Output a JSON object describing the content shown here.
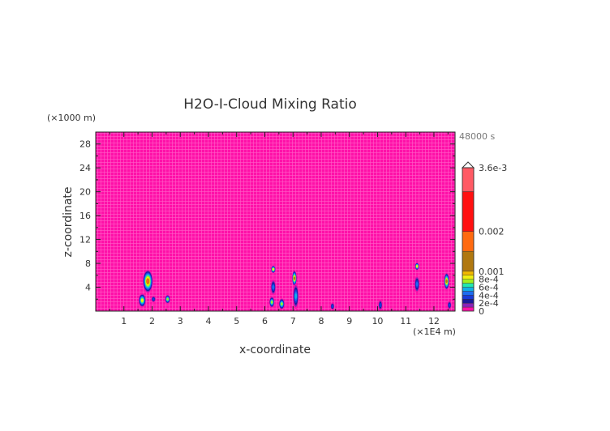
{
  "chart_data": {
    "type": "heatmap",
    "subtype": "filled-contour",
    "title": "H2O-I-Cloud Mixing Ratio",
    "xlabel": "x-coordinate",
    "ylabel": "z-coordinate",
    "x_unit": "(×1E4 m)",
    "y_unit": "(×1000 m)",
    "time_label": "48000 s",
    "xlim": [
      0,
      12.75
    ],
    "ylim": [
      0,
      30
    ],
    "x_ticks": [
      "1",
      "2",
      "3",
      "4",
      "5",
      "6",
      "7",
      "8",
      "9",
      "10",
      "11",
      "12"
    ],
    "y_ticks": [
      "4",
      "8",
      "12",
      "16",
      "20",
      "24",
      "28"
    ],
    "background_value": 0,
    "colorbar": {
      "levels": [
        0,
        0.0001,
        0.0002,
        0.0003,
        0.0004,
        0.0005,
        0.0006,
        0.0007,
        0.0008,
        0.0009,
        0.001,
        0.0015,
        0.002,
        0.003,
        0.0036
      ],
      "colors": [
        "#ff10a8",
        "#8a22b8",
        "#1a1a9a",
        "#1a3ad8",
        "#1e6cf0",
        "#10b0e8",
        "#20e8b0",
        "#a0f020",
        "#f0f010",
        "#f0b800",
        "#b07810",
        "#ff6a10",
        "#ff1010",
        "#ff5a64",
        "#ffb4b4"
      ],
      "tick_labels": [
        "0",
        "2e-4",
        "4e-4",
        "6e-4",
        "8e-4",
        "0.001",
        "0.002",
        "3.6e-3"
      ],
      "tick_values": [
        0,
        0.0002,
        0.0004,
        0.0006,
        0.0008,
        0.001,
        0.002,
        0.0036
      ],
      "extend": "max"
    },
    "features": [
      {
        "x": 1.85,
        "z": 5.0,
        "rx": 0.15,
        "rz": 1.8,
        "max": 0.0015
      },
      {
        "x": 1.65,
        "z": 1.8,
        "rx": 0.1,
        "rz": 1.0,
        "max": 0.0008
      },
      {
        "x": 2.05,
        "z": 2.0,
        "rx": 0.05,
        "rz": 0.4,
        "max": 0.0003
      },
      {
        "x": 2.55,
        "z": 2.0,
        "rx": 0.06,
        "rz": 0.6,
        "max": 0.0007
      },
      {
        "x": 6.3,
        "z": 7.0,
        "rx": 0.05,
        "rz": 0.5,
        "max": 0.0008
      },
      {
        "x": 6.3,
        "z": 4.0,
        "rx": 0.06,
        "rz": 1.2,
        "max": 0.0004
      },
      {
        "x": 6.25,
        "z": 1.5,
        "rx": 0.06,
        "rz": 0.8,
        "max": 0.0007
      },
      {
        "x": 6.6,
        "z": 1.2,
        "rx": 0.07,
        "rz": 0.8,
        "max": 0.0007
      },
      {
        "x": 7.05,
        "z": 5.5,
        "rx": 0.05,
        "rz": 1.2,
        "max": 0.0012
      },
      {
        "x": 7.1,
        "z": 2.5,
        "rx": 0.07,
        "rz": 2.0,
        "max": 0.0005
      },
      {
        "x": 8.4,
        "z": 0.8,
        "rx": 0.04,
        "rz": 0.5,
        "max": 0.0003
      },
      {
        "x": 10.1,
        "z": 1.0,
        "rx": 0.04,
        "rz": 0.8,
        "max": 0.0003
      },
      {
        "x": 11.4,
        "z": 7.5,
        "rx": 0.04,
        "rz": 0.5,
        "max": 0.0008
      },
      {
        "x": 11.4,
        "z": 4.5,
        "rx": 0.06,
        "rz": 1.3,
        "max": 0.0004
      },
      {
        "x": 12.45,
        "z": 5.0,
        "rx": 0.06,
        "rz": 1.3,
        "max": 0.0013
      },
      {
        "x": 12.55,
        "z": 1.0,
        "rx": 0.04,
        "rz": 0.6,
        "max": 0.0003
      }
    ]
  }
}
